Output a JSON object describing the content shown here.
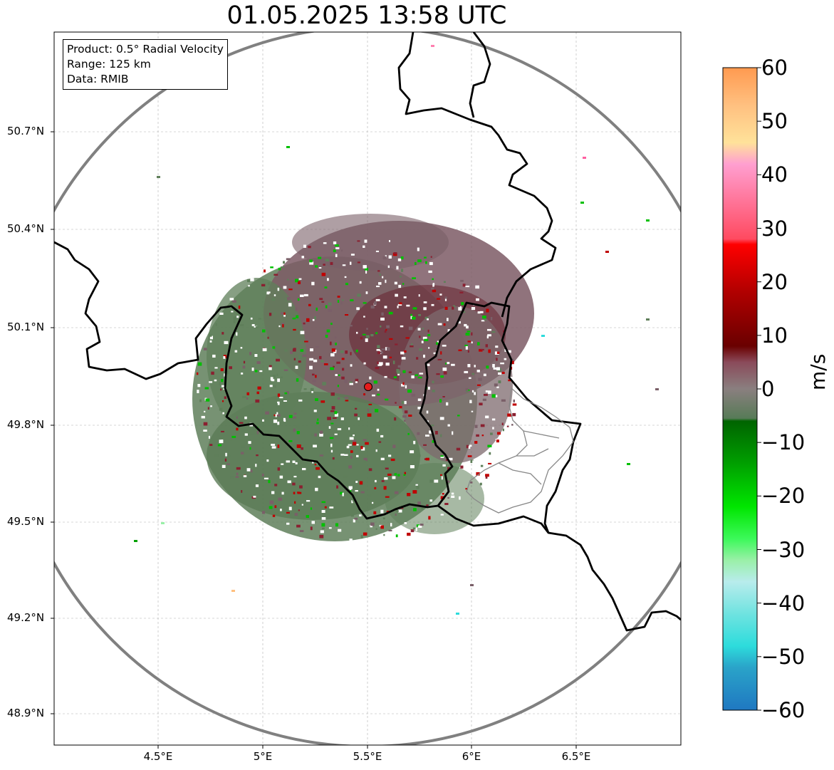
{
  "title": "01.05.2025 13:58 UTC",
  "info": {
    "product": "Product: 0.5° Radial Velocity",
    "range": "Range: 125 km",
    "data": "Data: RMIB"
  },
  "axes": {
    "lat_labels": [
      "50.7°N",
      "50.4°N",
      "50.1°N",
      "49.8°N",
      "49.5°N",
      "49.2°N",
      "48.9°N"
    ],
    "lon_labels": [
      "4.5°E",
      "5°E",
      "5.5°E",
      "6°E",
      "6.5°E"
    ],
    "lat_ticks": [
      50.7,
      50.4,
      50.1,
      49.8,
      49.5,
      49.2,
      48.9
    ],
    "lon_ticks": [
      4.5,
      5.0,
      5.5,
      6.0,
      6.5
    ],
    "lon_range": [
      4.0,
      7.0
    ],
    "lat_range": [
      48.8,
      50.98
    ]
  },
  "radar": {
    "name": "radar-site",
    "lon": 5.505,
    "lat": 49.914,
    "range_km": 125
  },
  "colorbar": {
    "label": "m/s",
    "min": -60,
    "max": 60,
    "tick_values": [
      60,
      50,
      40,
      30,
      20,
      10,
      0,
      -10,
      -20,
      -30,
      -40,
      -50,
      -60
    ],
    "tick_labels": [
      "60",
      "50",
      "40",
      "30",
      "20",
      "10",
      "0",
      "−10",
      "−20",
      "−30",
      "−40",
      "−50",
      "−60"
    ],
    "stops": [
      {
        "v": -60,
        "c": "#1f78c1"
      },
      {
        "v": -52,
        "c": "#2aa3c9"
      },
      {
        "v": -48,
        "c": "#2ddcdc"
      },
      {
        "v": -42,
        "c": "#6fe3e0"
      },
      {
        "v": -36,
        "c": "#b8ecec"
      },
      {
        "v": -32,
        "c": "#9af0a8"
      },
      {
        "v": -28,
        "c": "#3cf95a"
      },
      {
        "v": -22,
        "c": "#00e600"
      },
      {
        "v": -14,
        "c": "#00a000"
      },
      {
        "v": -6,
        "c": "#006400"
      },
      {
        "v": -5.5,
        "c": "#577b57"
      },
      {
        "v": 0,
        "c": "#8a7f7f"
      },
      {
        "v": 5,
        "c": "#8a4a5a"
      },
      {
        "v": 8,
        "c": "#6a0000"
      },
      {
        "v": 18,
        "c": "#b00000"
      },
      {
        "v": 27,
        "c": "#ff0000"
      },
      {
        "v": 28,
        "c": "#ff4a60"
      },
      {
        "v": 36,
        "c": "#ff7aa0"
      },
      {
        "v": 42,
        "c": "#ff9fd0"
      },
      {
        "v": 46,
        "c": "#ffe29a"
      },
      {
        "v": 53,
        "c": "#ffc080"
      },
      {
        "v": 60,
        "c": "#ff9a50"
      }
    ]
  }
}
